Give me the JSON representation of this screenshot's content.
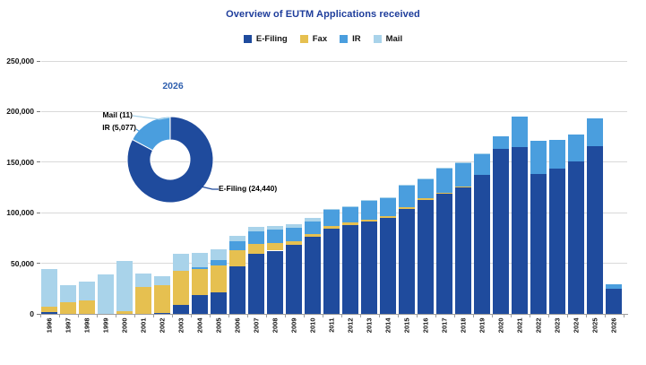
{
  "title": "Overview of EUTM Applications received",
  "colors": {
    "title_text": "#1E3D9B",
    "donut_title": "#2E5FAE",
    "gridline": "#D9D9D9",
    "axis": "#9E9E9E"
  },
  "y_axis": {
    "tick_labels": [
      "0",
      "50,000",
      "100,000",
      "150,000",
      "200,000",
      "250,000"
    ]
  },
  "chart_data": {
    "type": "bar",
    "stacked": true,
    "title": "Overview of EUTM Applications received",
    "xlabel": "",
    "ylabel": "",
    "ylim": [
      0,
      250000
    ],
    "grid": true,
    "legend_position": "top",
    "categories": [
      "1996",
      "1997",
      "1998",
      "1999",
      "2000",
      "2001",
      "2002",
      "2003",
      "2004",
      "2005",
      "2006",
      "2007",
      "2008",
      "2009",
      "2010",
      "2011",
      "2012",
      "2013",
      "2014",
      "2015",
      "2016",
      "2017",
      "2018",
      "2019",
      "2020",
      "2021",
      "2022",
      "2023",
      "2024",
      "2025",
      "2026"
    ],
    "series": [
      {
        "name": "E-Filing",
        "color": "#1F4B9D",
        "values": [
          2000,
          0,
          0,
          0,
          0,
          0,
          1300,
          9000,
          18500,
          21000,
          47000,
          59000,
          62500,
          68500,
          76500,
          84000,
          87500,
          91000,
          95000,
          104000,
          113000,
          119000,
          125500,
          137500,
          163000,
          164500,
          138500,
          144000,
          151000,
          165500,
          24440
        ]
      },
      {
        "name": "Fax",
        "color": "#E6C050",
        "values": [
          5000,
          11500,
          13500,
          0,
          2500,
          27000,
          27000,
          33500,
          26000,
          26500,
          16000,
          10500,
          7500,
          3500,
          2200,
          2500,
          2500,
          2200,
          2000,
          1800,
          1500,
          1000,
          500,
          0,
          0,
          0,
          0,
          0,
          0,
          0,
          0
        ]
      },
      {
        "name": "IR",
        "color": "#4A9EDE",
        "values": [
          0,
          0,
          0,
          0,
          0,
          0,
          0,
          0,
          1500,
          6000,
          9000,
          12000,
          13500,
          13200,
          13000,
          16500,
          16400,
          19300,
          17800,
          21600,
          19000,
          24400,
          23400,
          20700,
          12400,
          30400,
          33000,
          28000,
          26500,
          27800,
          5077
        ]
      },
      {
        "name": "Mail",
        "color": "#A9D3EA",
        "values": [
          37000,
          16500,
          18000,
          39000,
          49500,
          13000,
          8900,
          16600,
          14500,
          10100,
          4900,
          4800,
          3700,
          3500,
          3500,
          500,
          400,
          400,
          400,
          300,
          300,
          300,
          300,
          300,
          0,
          0,
          0,
          0,
          0,
          0,
          11
        ]
      }
    ]
  },
  "donut": {
    "title": "2026",
    "slices": [
      {
        "name": "E-Filing",
        "value": 24440,
        "label": "E-Filing (24,440)",
        "color": "#1F4B9D"
      },
      {
        "name": "IR",
        "value": 5077,
        "label": "IR (5,077)",
        "color": "#4A9EDE"
      },
      {
        "name": "Mail",
        "value": 11,
        "label": "Mail (11)",
        "color": "#A9D3EA"
      }
    ]
  }
}
